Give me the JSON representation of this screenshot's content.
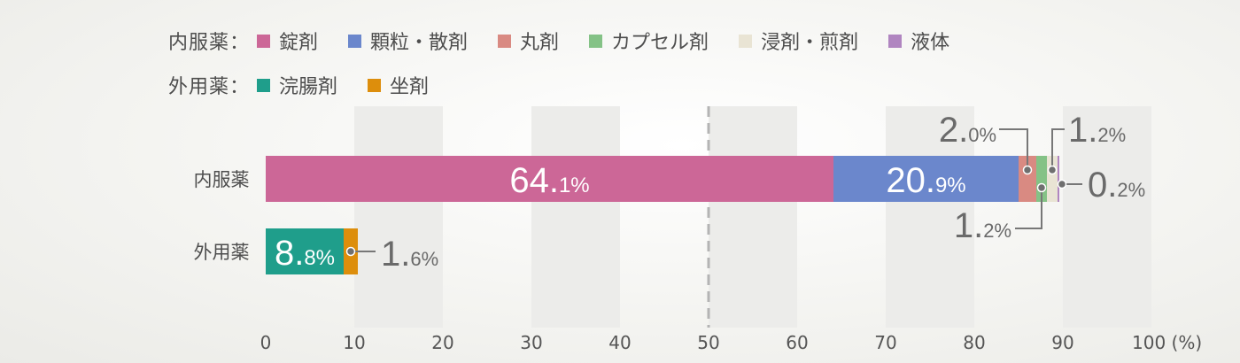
{
  "chart_data": {
    "type": "bar",
    "orientation": "horizontal",
    "stacked": true,
    "xlim": [
      0,
      100
    ],
    "xticks": [
      "0",
      "10",
      "20",
      "30",
      "40",
      "50",
      "60",
      "70",
      "80",
      "90",
      "100 (%)"
    ],
    "reference_line": 50,
    "legend": {
      "internal_label": "内服薬：",
      "internal": [
        {
          "name": "錠剤",
          "color": "#cc6797"
        },
        {
          "name": "顆粒・散剤",
          "color": "#6b87cc"
        },
        {
          "name": "丸剤",
          "color": "#d98a82"
        },
        {
          "name": "カプセル剤",
          "color": "#84c286"
        },
        {
          "name": "浸剤・煎剤",
          "color": "#e9e4d4"
        },
        {
          "name": "液体",
          "color": "#b085c0"
        }
      ],
      "external_label": "外用薬：",
      "external": [
        {
          "name": "浣腸剤",
          "color": "#1f9e8b"
        },
        {
          "name": "坐剤",
          "color": "#dd8e0c"
        }
      ]
    },
    "series": [
      {
        "category": "内服薬",
        "segments": [
          {
            "name": "錠剤",
            "value": 64.1,
            "label_int": "64.",
            "label_dec": "1%"
          },
          {
            "name": "顆粒・散剤",
            "value": 20.9,
            "label_int": "20.",
            "label_dec": "9%"
          },
          {
            "name": "丸剤",
            "value": 2.0,
            "label_int": "2.",
            "label_dec": "0%"
          },
          {
            "name": "カプセル剤",
            "value": 1.2,
            "label_int": "1.",
            "label_dec": "2%"
          },
          {
            "name": "浸剤・煎剤",
            "value": 1.2,
            "label_int": "1.",
            "label_dec": "2%"
          },
          {
            "name": "液体",
            "value": 0.2,
            "label_int": "0.",
            "label_dec": "2%"
          }
        ]
      },
      {
        "category": "外用薬",
        "segments": [
          {
            "name": "浣腸剤",
            "value": 8.8,
            "label_int": "8.",
            "label_dec": "8%"
          },
          {
            "name": "坐剤",
            "value": 1.6,
            "label_int": "1.",
            "label_dec": "6%"
          }
        ]
      }
    ]
  }
}
